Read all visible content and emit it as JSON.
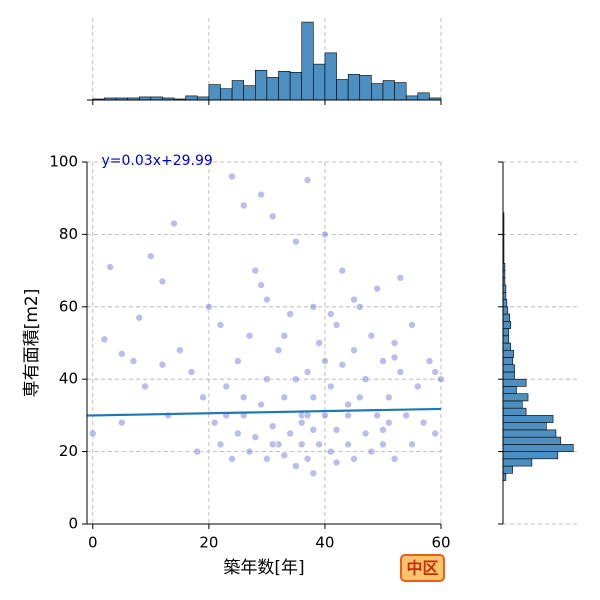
{
  "chart_data": {
    "type": "scatter",
    "xlabel": "築年数[年]",
    "ylabel": "専有面積[m2]",
    "badge": "中区",
    "regression": {
      "label": "y=0.03x+29.99",
      "slope": 0.03,
      "intercept": 29.99,
      "color": "#1f77b4"
    },
    "color": "#6a6ad8",
    "xlim": [
      -1,
      60
    ],
    "ylim": [
      0,
      100
    ],
    "xticks": [
      0,
      20,
      40,
      60
    ],
    "yticks": [
      0,
      20,
      40,
      60,
      80,
      100
    ],
    "grid": true,
    "x": [
      0,
      2,
      3,
      5,
      7,
      9,
      10,
      12,
      13,
      14,
      15,
      17,
      18,
      19,
      20,
      21,
      22,
      22,
      23,
      24,
      24,
      25,
      25,
      26,
      26,
      27,
      27,
      28,
      28,
      29,
      29,
      30,
      30,
      30,
      31,
      31,
      32,
      32,
      33,
      33,
      34,
      34,
      35,
      35,
      35,
      36,
      36,
      37,
      37,
      37,
      38,
      38,
      38,
      38,
      39,
      39,
      40,
      40,
      40,
      41,
      41,
      42,
      42,
      42,
      43,
      43,
      44,
      44,
      45,
      45,
      46,
      46,
      47,
      47,
      48,
      48,
      49,
      49,
      50,
      50,
      51,
      51,
      52,
      52,
      53,
      53,
      54,
      55,
      55,
      56,
      57,
      58,
      59,
      59,
      60,
      5,
      8,
      12,
      26,
      29,
      33,
      37,
      41,
      45,
      50,
      23,
      31,
      36,
      44,
      52
    ],
    "y": [
      25,
      51,
      71,
      28,
      45,
      38,
      74,
      67,
      30,
      83,
      48,
      42,
      20,
      35,
      60,
      28,
      55,
      22,
      38,
      96,
      18,
      45,
      25,
      88,
      30,
      52,
      20,
      70,
      24,
      91,
      33,
      18,
      40,
      62,
      27,
      85,
      22,
      48,
      35,
      19,
      58,
      25,
      78,
      16,
      40,
      30,
      22,
      95,
      18,
      42,
      60,
      26,
      35,
      14,
      50,
      22,
      30,
      80,
      45,
      20,
      38,
      55,
      26,
      17,
      44,
      70,
      30,
      22,
      48,
      18,
      35,
      60,
      25,
      40,
      52,
      20,
      30,
      65,
      45,
      22,
      35,
      28,
      50,
      18,
      42,
      68,
      30,
      22,
      55,
      38,
      28,
      45,
      42,
      25,
      40,
      47,
      57,
      44,
      35,
      66,
      52,
      30,
      58,
      62,
      26,
      30,
      22,
      28,
      33,
      46
    ],
    "top_histogram": {
      "type": "histogram",
      "color": "#4c8fc0",
      "bins": [
        0,
        2,
        4,
        6,
        8,
        10,
        12,
        14,
        16,
        18,
        20,
        22,
        24,
        26,
        28,
        30,
        32,
        34,
        36,
        38,
        40,
        42,
        44,
        46,
        48,
        50,
        52,
        54,
        56,
        58,
        60
      ],
      "counts": [
        1,
        2,
        2,
        2,
        3,
        3,
        2,
        1,
        4,
        3,
        15,
        11,
        19,
        14,
        29,
        22,
        28,
        27,
        76,
        35,
        46,
        20,
        25,
        24,
        16,
        19,
        17,
        4,
        7,
        2
      ],
      "ylim": [
        0,
        80
      ]
    },
    "right_histogram": {
      "type": "histogram",
      "color": "#4c8fc0",
      "bins": [
        12,
        14,
        16,
        18,
        20,
        22,
        24,
        26,
        28,
        30,
        32,
        34,
        36,
        38,
        40,
        42,
        44,
        46,
        48,
        50,
        52,
        54,
        56,
        58,
        60,
        62,
        64,
        66,
        68,
        70,
        72,
        74,
        76,
        78,
        80,
        82,
        84,
        86
      ],
      "counts": [
        3,
        10,
        30,
        57,
        73,
        60,
        55,
        45,
        52,
        24,
        20,
        26,
        14,
        24,
        12,
        12,
        10,
        11,
        8,
        6,
        6,
        8,
        7,
        5,
        4,
        3,
        3,
        2,
        2,
        2,
        1,
        1,
        1,
        1,
        1,
        1,
        1
      ],
      "xlim": [
        0,
        80
      ]
    }
  }
}
